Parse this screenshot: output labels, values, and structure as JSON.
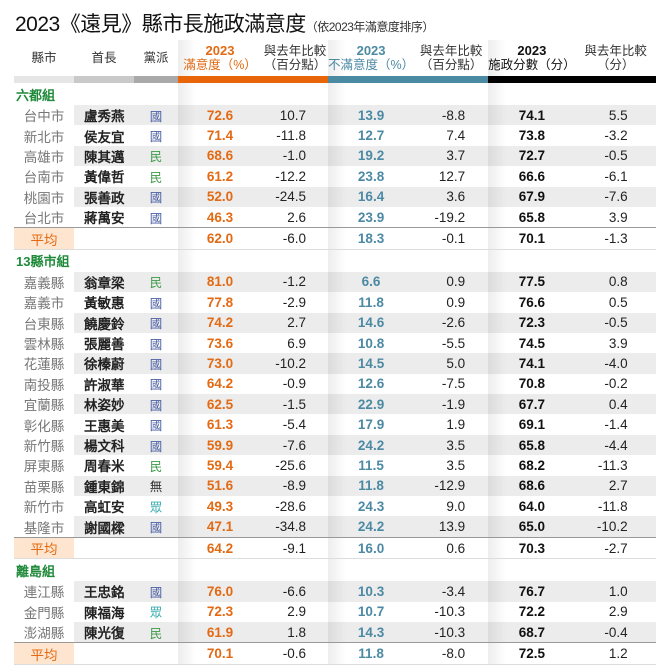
{
  "title": {
    "main": "2023《遠見》縣市長施政滿意度",
    "sub": "（依2023年滿意度排序）"
  },
  "colors": {
    "satisfaction": "#e36a12",
    "dissatisfaction": "#4c8aa4",
    "score": "#111111",
    "group": "#1f8a3a",
    "party_kmt": "#4a5fa5",
    "party_dpp": "#3e9a4a",
    "party_tpp": "#39aeb0",
    "party_none": "#333333"
  },
  "chart_data": {
    "type": "table",
    "columns": [
      {
        "line1": "縣市",
        "line2": ""
      },
      {
        "line1": "首長",
        "line2": ""
      },
      {
        "line1": "黨派",
        "line2": ""
      },
      {
        "line1": "2023",
        "line2": "滿意度（%）"
      },
      {
        "line1": "與去年比較",
        "line2": "（百分點）"
      },
      {
        "line1": "2023",
        "line2": "不滿意度（%）"
      },
      {
        "line1": "與去年比較",
        "line2": "（百分點）"
      },
      {
        "line1": "2023",
        "line2": "施政分數（分）"
      },
      {
        "line1": "與去年比較",
        "line2": "（分）"
      }
    ],
    "groups": [
      {
        "name": "六都組",
        "rows": [
          [
            "台中市",
            "盧秀燕",
            "國",
            "72.6",
            "10.7",
            "13.9",
            "-8.8",
            "74.1",
            "5.5"
          ],
          [
            "新北市",
            "侯友宜",
            "國",
            "71.4",
            "-11.8",
            "12.7",
            "7.4",
            "73.8",
            "-3.2"
          ],
          [
            "高雄市",
            "陳其邁",
            "民",
            "68.6",
            "-1.0",
            "19.2",
            "3.7",
            "72.7",
            "-0.5"
          ],
          [
            "台南市",
            "黃偉哲",
            "民",
            "61.2",
            "-12.2",
            "23.8",
            "12.7",
            "66.6",
            "-6.1"
          ],
          [
            "桃園市",
            "張善政",
            "國",
            "52.0",
            "-24.5",
            "16.4",
            "3.6",
            "67.9",
            "-7.6"
          ],
          [
            "台北市",
            "蔣萬安",
            "國",
            "46.3",
            "2.6",
            "23.9",
            "-19.2",
            "65.8",
            "3.9"
          ]
        ],
        "average": [
          "平均",
          "",
          "",
          "62.0",
          "-6.0",
          "18.3",
          "-0.1",
          "70.1",
          "-1.3"
        ]
      },
      {
        "name": "13縣市組",
        "rows": [
          [
            "嘉義縣",
            "翁章梁",
            "民",
            "81.0",
            "-1.2",
            "6.6",
            "0.9",
            "77.5",
            "0.8"
          ],
          [
            "嘉義市",
            "黃敏惠",
            "國",
            "77.8",
            "-2.9",
            "11.8",
            "0.9",
            "76.6",
            "0.5"
          ],
          [
            "台東縣",
            "饒慶鈴",
            "國",
            "74.2",
            "2.7",
            "14.6",
            "-2.6",
            "72.3",
            "-0.5"
          ],
          [
            "雲林縣",
            "張麗善",
            "國",
            "73.6",
            "6.9",
            "10.8",
            "-5.5",
            "74.5",
            "3.9"
          ],
          [
            "花蓮縣",
            "徐榛蔚",
            "國",
            "73.0",
            "-10.2",
            "14.5",
            "5.0",
            "74.1",
            "-4.0"
          ],
          [
            "南投縣",
            "許淑華",
            "國",
            "64.2",
            "-0.9",
            "12.6",
            "-7.5",
            "70.8",
            "-0.2"
          ],
          [
            "宜蘭縣",
            "林姿妙",
            "國",
            "62.5",
            "-1.5",
            "22.9",
            "-1.9",
            "67.7",
            "0.4"
          ],
          [
            "彰化縣",
            "王惠美",
            "國",
            "61.3",
            "-5.4",
            "17.9",
            "1.9",
            "69.1",
            "-1.4"
          ],
          [
            "新竹縣",
            "楊文科",
            "國",
            "59.9",
            "-7.6",
            "24.2",
            "3.5",
            "65.8",
            "-4.4"
          ],
          [
            "屏東縣",
            "周春米",
            "民",
            "59.4",
            "-25.6",
            "11.5",
            "3.5",
            "68.2",
            "-11.3"
          ],
          [
            "苗栗縣",
            "鍾東錦",
            "無",
            "51.6",
            "-8.9",
            "11.8",
            "-12.9",
            "68.6",
            "2.7"
          ],
          [
            "新竹市",
            "高虹安",
            "眾",
            "49.3",
            "-28.6",
            "24.3",
            "9.0",
            "64.0",
            "-11.8"
          ],
          [
            "基隆市",
            "謝國樑",
            "國",
            "47.1",
            "-34.8",
            "24.2",
            "13.9",
            "65.0",
            "-10.2"
          ]
        ],
        "average": [
          "平均",
          "",
          "",
          "64.2",
          "-9.1",
          "16.0",
          "0.6",
          "70.3",
          "-2.7"
        ]
      },
      {
        "name": "離島組",
        "rows": [
          [
            "連江縣",
            "王忠銘",
            "國",
            "76.0",
            "-6.6",
            "10.3",
            "-3.4",
            "76.7",
            "1.0"
          ],
          [
            "金門縣",
            "陳福海",
            "眾",
            "72.3",
            "2.9",
            "10.7",
            "-10.3",
            "72.2",
            "2.9"
          ],
          [
            "澎湖縣",
            "陳光復",
            "民",
            "61.9",
            "1.8",
            "14.3",
            "-10.3",
            "68.7",
            "-0.4"
          ]
        ],
        "average": [
          "平均",
          "",
          "",
          "70.1",
          "-0.6",
          "11.8",
          "-8.0",
          "72.5",
          "1.2"
        ]
      }
    ]
  }
}
